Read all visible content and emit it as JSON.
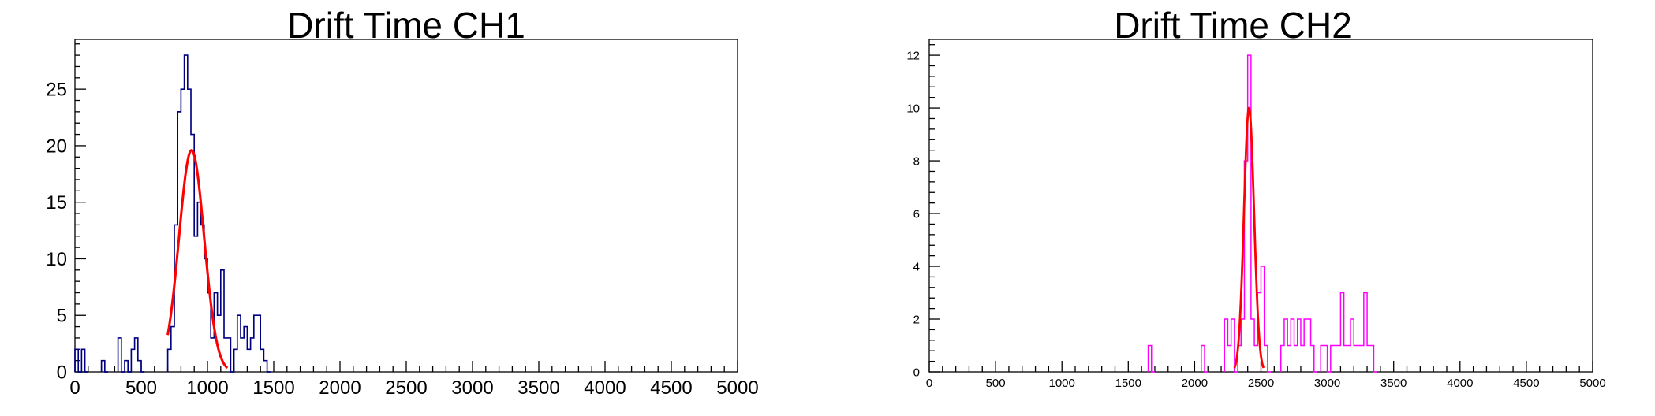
{
  "colors": {
    "ch1_histogram": "#000080",
    "ch2_histogram": "#ff00ff",
    "fit": "#ff0000"
  },
  "chart_data": [
    {
      "type": "histogram",
      "title": "Drift Time CH1",
      "xlabel": "",
      "ylabel": "",
      "xlim": [
        0,
        5000
      ],
      "ylim": [
        0,
        29.4
      ],
      "x_ticks": [
        0,
        500,
        1000,
        1500,
        2000,
        2500,
        3000,
        3500,
        4000,
        4500,
        5000
      ],
      "y_ticks": [
        0,
        5,
        10,
        15,
        20,
        25
      ],
      "bin_width": 25,
      "grid": false,
      "legend": "none",
      "series": [
        {
          "kind": "step-histogram",
          "color": "#000080",
          "bins": [
            {
              "x": 0,
              "y": 2
            },
            {
              "x": 25,
              "y": 0
            },
            {
              "x": 50,
              "y": 2
            },
            {
              "x": 75,
              "y": 0
            },
            {
              "x": 200,
              "y": 1
            },
            {
              "x": 225,
              "y": 0
            },
            {
              "x": 325,
              "y": 3
            },
            {
              "x": 350,
              "y": 0
            },
            {
              "x": 375,
              "y": 1
            },
            {
              "x": 400,
              "y": 0
            },
            {
              "x": 425,
              "y": 2
            },
            {
              "x": 450,
              "y": 3
            },
            {
              "x": 475,
              "y": 1
            },
            {
              "x": 500,
              "y": 0
            },
            {
              "x": 700,
              "y": 2
            },
            {
              "x": 725,
              "y": 4
            },
            {
              "x": 750,
              "y": 13
            },
            {
              "x": 775,
              "y": 23
            },
            {
              "x": 800,
              "y": 25
            },
            {
              "x": 825,
              "y": 28
            },
            {
              "x": 850,
              "y": 25
            },
            {
              "x": 875,
              "y": 21
            },
            {
              "x": 900,
              "y": 12
            },
            {
              "x": 925,
              "y": 15
            },
            {
              "x": 950,
              "y": 13
            },
            {
              "x": 975,
              "y": 10
            },
            {
              "x": 1000,
              "y": 7
            },
            {
              "x": 1025,
              "y": 3
            },
            {
              "x": 1050,
              "y": 7
            },
            {
              "x": 1075,
              "y": 5
            },
            {
              "x": 1100,
              "y": 9
            },
            {
              "x": 1125,
              "y": 3
            },
            {
              "x": 1150,
              "y": 3
            },
            {
              "x": 1175,
              "y": 0
            },
            {
              "x": 1200,
              "y": 2
            },
            {
              "x": 1225,
              "y": 5
            },
            {
              "x": 1250,
              "y": 3
            },
            {
              "x": 1275,
              "y": 4
            },
            {
              "x": 1300,
              "y": 2
            },
            {
              "x": 1325,
              "y": 3
            },
            {
              "x": 1350,
              "y": 5
            },
            {
              "x": 1375,
              "y": 5
            },
            {
              "x": 1400,
              "y": 2
            },
            {
              "x": 1425,
              "y": 1
            },
            {
              "x": 1450,
              "y": 0
            }
          ]
        },
        {
          "kind": "gaussian-fit",
          "color": "#ff0000",
          "amplitude": 19.6,
          "mean": 880,
          "sigma": 95,
          "range": [
            700,
            1150
          ]
        }
      ]
    },
    {
      "type": "histogram",
      "title": "Drift Time CH2",
      "xlabel": "",
      "ylabel": "",
      "xlim": [
        0,
        5000
      ],
      "ylim": [
        0,
        12.6
      ],
      "x_ticks": [
        0,
        500,
        1000,
        1500,
        2000,
        2500,
        3000,
        3500,
        4000,
        4500,
        5000
      ],
      "y_ticks": [
        0,
        2,
        4,
        6,
        8,
        10,
        12
      ],
      "bin_width": 25,
      "grid": false,
      "legend": "none",
      "series": [
        {
          "kind": "step-histogram",
          "color": "#ff00ff",
          "bins": [
            {
              "x": 1650,
              "y": 1
            },
            {
              "x": 1675,
              "y": 0
            },
            {
              "x": 2050,
              "y": 1
            },
            {
              "x": 2075,
              "y": 0
            },
            {
              "x": 2225,
              "y": 2
            },
            {
              "x": 2250,
              "y": 1
            },
            {
              "x": 2275,
              "y": 2
            },
            {
              "x": 2300,
              "y": 0
            },
            {
              "x": 2325,
              "y": 1
            },
            {
              "x": 2350,
              "y": 2
            },
            {
              "x": 2375,
              "y": 8
            },
            {
              "x": 2400,
              "y": 12
            },
            {
              "x": 2425,
              "y": 2
            },
            {
              "x": 2450,
              "y": 1
            },
            {
              "x": 2475,
              "y": 3
            },
            {
              "x": 2500,
              "y": 4
            },
            {
              "x": 2525,
              "y": 1
            },
            {
              "x": 2550,
              "y": 0
            },
            {
              "x": 2650,
              "y": 1
            },
            {
              "x": 2675,
              "y": 2
            },
            {
              "x": 2700,
              "y": 1
            },
            {
              "x": 2725,
              "y": 2
            },
            {
              "x": 2750,
              "y": 1
            },
            {
              "x": 2775,
              "y": 2
            },
            {
              "x": 2800,
              "y": 1
            },
            {
              "x": 2825,
              "y": 2
            },
            {
              "x": 2850,
              "y": 2
            },
            {
              "x": 2875,
              "y": 1
            },
            {
              "x": 2900,
              "y": 0
            },
            {
              "x": 2950,
              "y": 1
            },
            {
              "x": 2975,
              "y": 1
            },
            {
              "x": 3000,
              "y": 0
            },
            {
              "x": 3025,
              "y": 1
            },
            {
              "x": 3050,
              "y": 1
            },
            {
              "x": 3075,
              "y": 1
            },
            {
              "x": 3100,
              "y": 3
            },
            {
              "x": 3125,
              "y": 1
            },
            {
              "x": 3150,
              "y": 1
            },
            {
              "x": 3175,
              "y": 2
            },
            {
              "x": 3200,
              "y": 1
            },
            {
              "x": 3225,
              "y": 1
            },
            {
              "x": 3250,
              "y": 1
            },
            {
              "x": 3275,
              "y": 3
            },
            {
              "x": 3300,
              "y": 1
            },
            {
              "x": 3325,
              "y": 1
            },
            {
              "x": 3350,
              "y": 0
            }
          ]
        },
        {
          "kind": "gaussian-fit",
          "color": "#ff0000",
          "amplitude": 10,
          "mean": 2410,
          "sigma": 38,
          "range": [
            2300,
            2520
          ]
        }
      ]
    }
  ]
}
